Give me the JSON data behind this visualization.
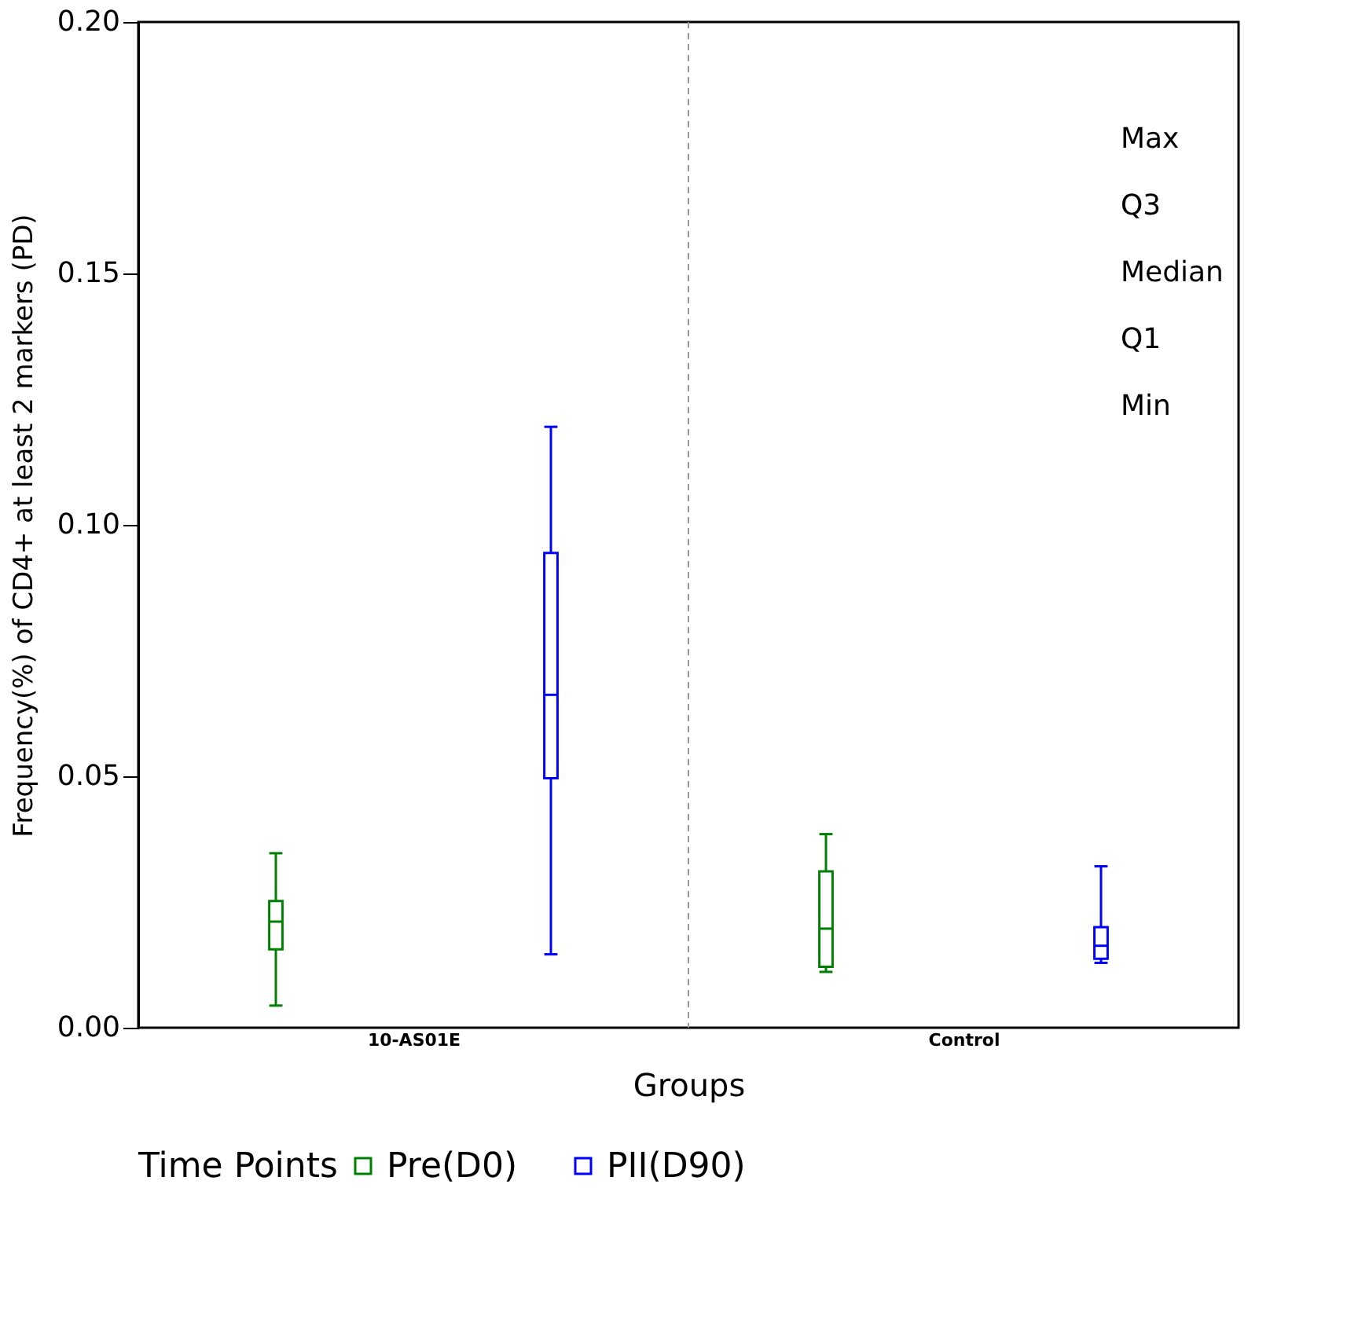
{
  "chart_data": {
    "type": "box",
    "xlabel": "Groups",
    "ylabel": "Frequency(%) of CD4+ at least 2 markers (PD)",
    "legend_title": "Time Points",
    "categories": [
      "10-AS01E",
      "Control"
    ],
    "series": [
      {
        "name": "Pre(D0)",
        "color": "#008000",
        "boxes": [
          {
            "low": 0.0044,
            "q1": 0.0156,
            "median": 0.0211,
            "q3": 0.0252,
            "high": 0.0347
          },
          {
            "low": 0.0111,
            "q1": 0.0121,
            "median": 0.0197,
            "q3": 0.0311,
            "high": 0.0385
          }
        ]
      },
      {
        "name": "PII(D90)",
        "color": "#0000ff",
        "boxes": [
          {
            "low": 0.0146,
            "q1": 0.0496,
            "median": 0.0662,
            "q3": 0.0944,
            "high": 0.1195
          },
          {
            "low": 0.0129,
            "q1": 0.0137,
            "median": 0.0163,
            "q3": 0.02,
            "high": 0.0321
          }
        ]
      }
    ],
    "ylim": [
      0,
      0.2
    ],
    "yticks": [
      {
        "value": 0,
        "label": "0.00"
      },
      {
        "value": 0.05,
        "label": "0.05"
      },
      {
        "value": 0.1,
        "label": "0.10"
      },
      {
        "value": 0.15,
        "label": "0.15"
      },
      {
        "value": 0.2,
        "label": "0.20"
      }
    ],
    "annotations": [
      "Max",
      "Q3",
      "Median",
      "Q1",
      "Min"
    ],
    "legend": "bottom",
    "grid": false
  }
}
